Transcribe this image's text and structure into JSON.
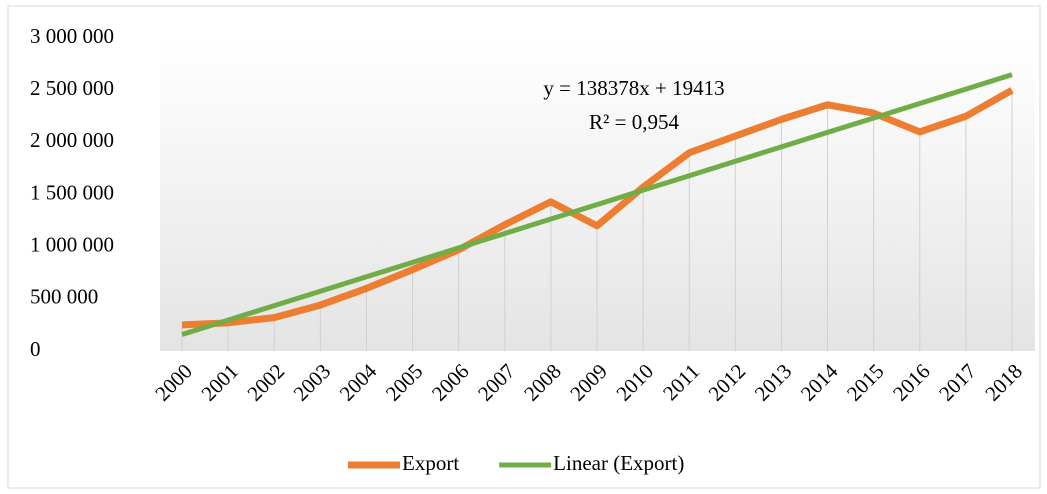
{
  "chart_data": {
    "type": "line",
    "categories": [
      "2000",
      "2001",
      "2002",
      "2003",
      "2004",
      "2005",
      "2006",
      "2007",
      "2008",
      "2009",
      "2010",
      "2011",
      "2012",
      "2013",
      "2014",
      "2015",
      "2016",
      "2017",
      "2018"
    ],
    "series": [
      {
        "name": "Export",
        "color": "#ed7d31",
        "values": [
          250000,
          270000,
          320000,
          440000,
          600000,
          780000,
          970000,
          1210000,
          1430000,
          1200000,
          1570000,
          1900000,
          2060000,
          2220000,
          2360000,
          2280000,
          2100000,
          2250000,
          2500000
        ]
      },
      {
        "name": "Linear (Export)",
        "color": "#70ad47",
        "values": [
          157791,
          296169,
          434547,
          572925,
          711303,
          849681,
          988059,
          1126437,
          1264815,
          1403193,
          1541571,
          1679949,
          1818327,
          1956705,
          2095083,
          2233461,
          2371839,
          2510217,
          2648595
        ]
      }
    ],
    "annotations": [
      "y = 138378x + 19413",
      "R² = 0,954"
    ],
    "ylim": [
      0,
      3000000
    ],
    "yticks": [
      0,
      {
        "value": 500000,
        "label": "500 000"
      },
      {
        "value": 1000000,
        "label": "1 000 000"
      },
      {
        "value": 1500000,
        "label": "1 500 000"
      },
      {
        "value": 2000000,
        "label": "2 000 000"
      },
      {
        "value": 2500000,
        "label": "2 500 000"
      },
      {
        "value": 3000000,
        "label": "3 000 000"
      }
    ],
    "drop_lines": true,
    "legend": "bottom"
  }
}
